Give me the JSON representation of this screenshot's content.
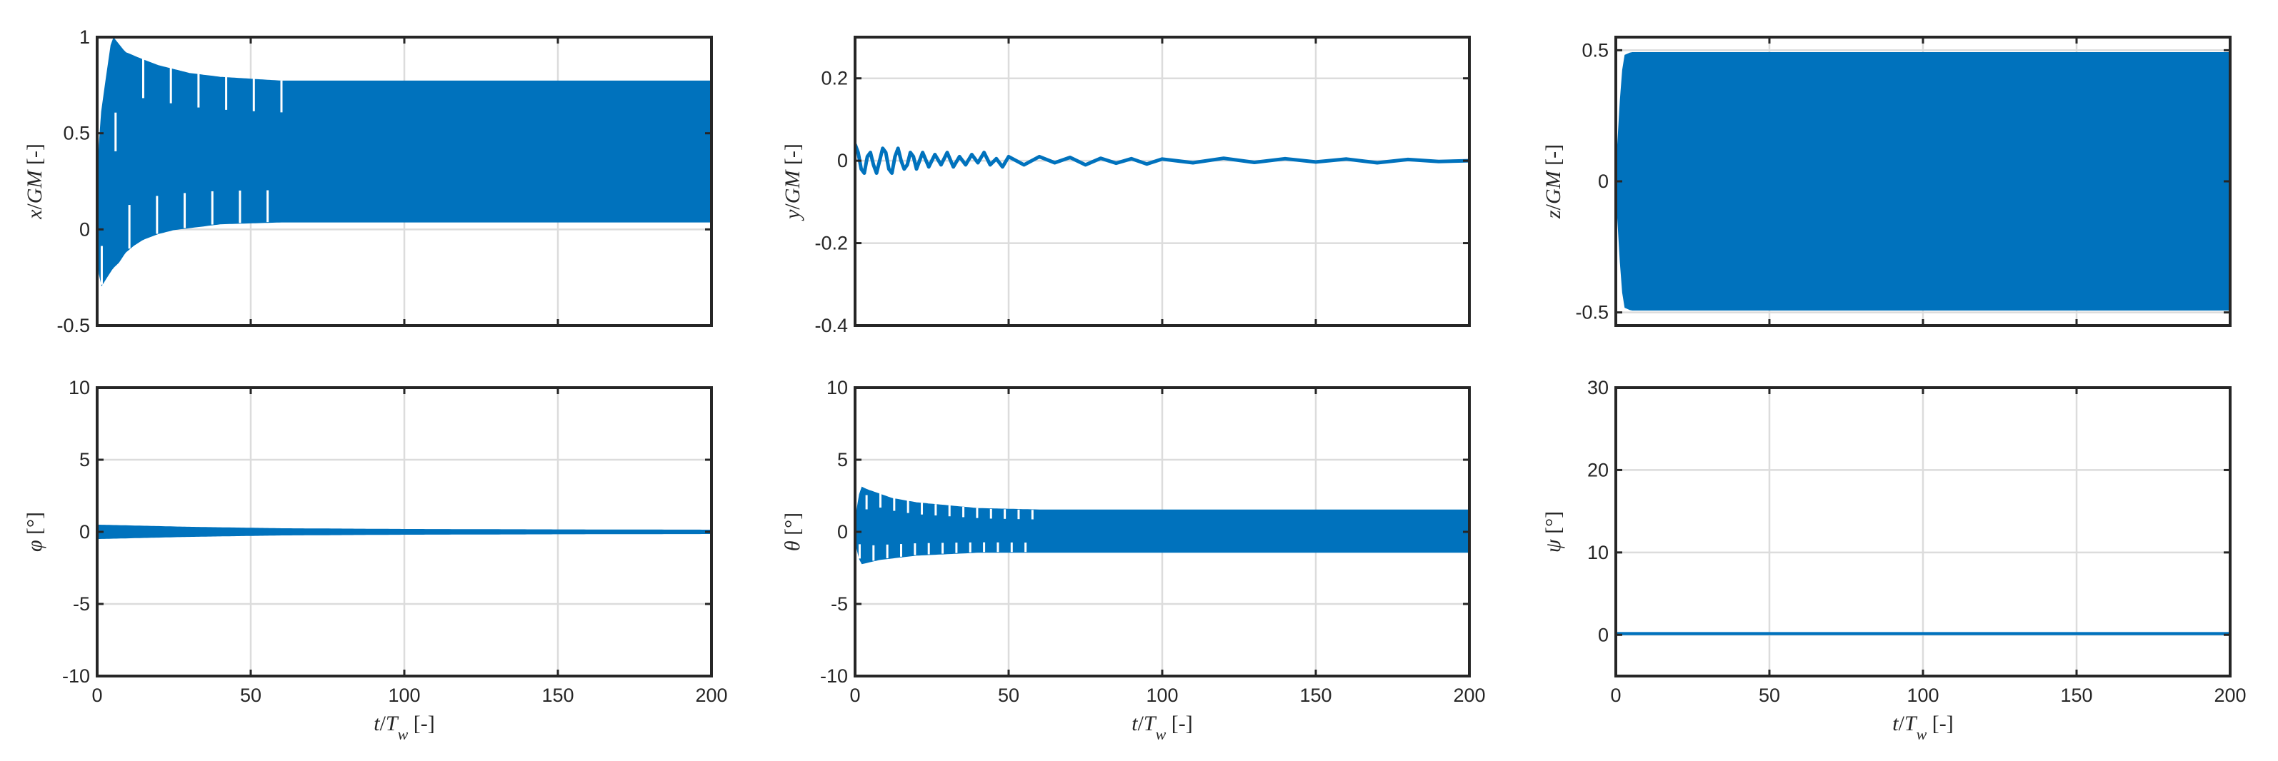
{
  "chart_data": [
    {
      "id": "x",
      "type": "line",
      "ylabel_parts": [
        [
          "x",
          true
        ],
        [
          "/",
          false
        ],
        [
          "GM",
          true
        ],
        [
          "  [-]",
          false
        ]
      ],
      "xlim": [
        0,
        200
      ],
      "ylim": [
        -0.5,
        1
      ],
      "xticks": [
        0,
        50,
        100,
        150,
        200
      ],
      "yticks": [
        -0.5,
        0,
        0.5,
        1
      ],
      "ytick_labels": [
        "-0.5",
        "0",
        "0.5",
        "1"
      ],
      "show_xticklabels": false,
      "series": [
        {
          "style": "band",
          "x": [
            0,
            1,
            3,
            5,
            7,
            9,
            12,
            15,
            20,
            25,
            30,
            40,
            50,
            60,
            80,
            100,
            150,
            200
          ],
          "upper": [
            0.08,
            0.55,
            0.78,
            1.0,
            0.96,
            0.92,
            0.9,
            0.88,
            0.85,
            0.83,
            0.81,
            0.79,
            0.78,
            0.77,
            0.77,
            0.77,
            0.77,
            0.77
          ],
          "lower": [
            0.0,
            -0.3,
            -0.25,
            -0.2,
            -0.17,
            -0.12,
            -0.08,
            -0.05,
            -0.02,
            0.0,
            0.01,
            0.03,
            0.035,
            0.04,
            0.04,
            0.04,
            0.04,
            0.04
          ],
          "peak_period": 9.0
        }
      ]
    },
    {
      "id": "y",
      "type": "line",
      "ylabel_parts": [
        [
          "y",
          true
        ],
        [
          "/",
          false
        ],
        [
          "GM",
          true
        ],
        [
          "  [-]",
          false
        ]
      ],
      "xlim": [
        0,
        200
      ],
      "ylim": [
        -0.4,
        0.3
      ],
      "xticks": [
        0,
        50,
        100,
        150,
        200
      ],
      "yticks": [
        -0.4,
        -0.2,
        0,
        0.2
      ],
      "ytick_labels": [
        "-0.4",
        "-0.2",
        "0",
        "0.2"
      ],
      "show_xticklabels": false,
      "series": [
        {
          "style": "line",
          "x": [
            0,
            1,
            2,
            3,
            4,
            5,
            6,
            7,
            8,
            9,
            10,
            11,
            12,
            13,
            14,
            15,
            16,
            17,
            18,
            19,
            20,
            22,
            24,
            26,
            28,
            30,
            32,
            34,
            36,
            38,
            40,
            42,
            44,
            46,
            48,
            50,
            55,
            60,
            65,
            70,
            75,
            80,
            85,
            90,
            95,
            100,
            110,
            120,
            130,
            140,
            150,
            160,
            170,
            180,
            190,
            200
          ],
          "y": [
            0.04,
            0.02,
            -0.02,
            -0.03,
            0.01,
            0.02,
            -0.01,
            -0.03,
            0.0,
            0.03,
            0.02,
            -0.02,
            -0.03,
            0.01,
            0.03,
            0.0,
            -0.02,
            -0.01,
            0.02,
            0.01,
            -0.02,
            0.02,
            -0.015,
            0.015,
            -0.01,
            0.02,
            -0.015,
            0.01,
            -0.01,
            0.015,
            -0.005,
            0.02,
            -0.01,
            0.005,
            -0.015,
            0.01,
            -0.01,
            0.01,
            -0.005,
            0.008,
            -0.01,
            0.006,
            -0.006,
            0.005,
            -0.008,
            0.004,
            -0.005,
            0.006,
            -0.004,
            0.005,
            -0.003,
            0.004,
            -0.005,
            0.003,
            -0.002,
            0.0
          ]
        }
      ]
    },
    {
      "id": "z",
      "type": "line",
      "ylabel_parts": [
        [
          "z",
          true
        ],
        [
          "/",
          false
        ],
        [
          "GM",
          true
        ],
        [
          "  [-]",
          false
        ]
      ],
      "xlim": [
        0,
        200
      ],
      "ylim": [
        -0.55,
        0.55
      ],
      "xticks": [
        0,
        50,
        100,
        150,
        200
      ],
      "yticks": [
        -0.5,
        0,
        0.5
      ],
      "ytick_labels": [
        "-0.5",
        "0",
        "0.5"
      ],
      "show_xticklabels": false,
      "series": [
        {
          "style": "band",
          "x": [
            0,
            1,
            2,
            3,
            5,
            200
          ],
          "upper": [
            0.0,
            0.2,
            0.4,
            0.48,
            0.49,
            0.49
          ],
          "lower": [
            0.0,
            -0.2,
            -0.4,
            -0.48,
            -0.49,
            -0.49
          ],
          "peak_period": 0
        }
      ]
    },
    {
      "id": "phi",
      "type": "line",
      "ylabel_parts": [
        [
          "φ",
          true
        ],
        [
          "  [°]",
          false
        ]
      ],
      "xlim": [
        0,
        200
      ],
      "ylim": [
        -10,
        10
      ],
      "xticks": [
        0,
        50,
        100,
        150,
        200
      ],
      "yticks": [
        -10,
        -5,
        0,
        5,
        10
      ],
      "ytick_labels": [
        "-10",
        "-5",
        "0",
        "5",
        "10"
      ],
      "show_xticklabels": true,
      "xlabel_parts": [
        [
          "t",
          true
        ],
        [
          "/",
          false
        ],
        [
          "T",
          true
        ],
        [
          "w",
          true
        ],
        [
          "  [-]",
          false
        ]
      ],
      "series": [
        {
          "style": "band",
          "x": [
            0,
            10,
            30,
            60,
            100,
            150,
            200
          ],
          "upper": [
            0.45,
            0.4,
            0.3,
            0.2,
            0.15,
            0.12,
            0.1
          ],
          "lower": [
            -0.45,
            -0.4,
            -0.3,
            -0.2,
            -0.15,
            -0.12,
            -0.1
          ],
          "peak_period": 0
        }
      ]
    },
    {
      "id": "theta",
      "type": "line",
      "ylabel_parts": [
        [
          "θ",
          true
        ],
        [
          "  [°]",
          false
        ]
      ],
      "xlim": [
        0,
        200
      ],
      "ylim": [
        -10,
        10
      ],
      "xticks": [
        0,
        50,
        100,
        150,
        200
      ],
      "yticks": [
        -10,
        -5,
        0,
        5,
        10
      ],
      "ytick_labels": [
        "-10",
        "-5",
        "0",
        "5",
        "10"
      ],
      "show_xticklabels": true,
      "xlabel_parts": [
        [
          "t",
          true
        ],
        [
          "/",
          false
        ],
        [
          "T",
          true
        ],
        [
          "w",
          true
        ],
        [
          "  [-]",
          false
        ]
      ],
      "series": [
        {
          "style": "band",
          "x": [
            0,
            1,
            2,
            4,
            8,
            12,
            20,
            30,
            40,
            60,
            100,
            200
          ],
          "upper": [
            0.3,
            2.0,
            3.1,
            2.9,
            2.6,
            2.3,
            2.0,
            1.8,
            1.6,
            1.5,
            1.5,
            1.5
          ],
          "lower": [
            -0.3,
            -1.5,
            -2.2,
            -2.1,
            -1.9,
            -1.8,
            -1.6,
            -1.5,
            -1.4,
            -1.4,
            -1.4,
            -1.4
          ],
          "peak_period": 4.5
        }
      ]
    },
    {
      "id": "psi",
      "type": "line",
      "ylabel_parts": [
        [
          "ψ",
          true
        ],
        [
          "  [°]",
          false
        ]
      ],
      "xlim": [
        0,
        200
      ],
      "ylim": [
        -5,
        30
      ],
      "xticks": [
        0,
        50,
        100,
        150,
        200
      ],
      "yticks": [
        0,
        10,
        20,
        30
      ],
      "ytick_labels": [
        "0",
        "10",
        "20",
        "30"
      ],
      "show_xticklabels": true,
      "xlabel_parts": [
        [
          "t",
          true
        ],
        [
          "/",
          false
        ],
        [
          "T",
          true
        ],
        [
          "w",
          true
        ],
        [
          "  [-]",
          false
        ]
      ],
      "series": [
        {
          "style": "band",
          "x": [
            0,
            200
          ],
          "upper": [
            0.25,
            0.25
          ],
          "lower": [
            0.05,
            0.05
          ],
          "peak_period": 0
        }
      ]
    }
  ],
  "colors": {
    "series": "#0072BD",
    "grid": "#dcdcdc",
    "axes": "#262626"
  }
}
